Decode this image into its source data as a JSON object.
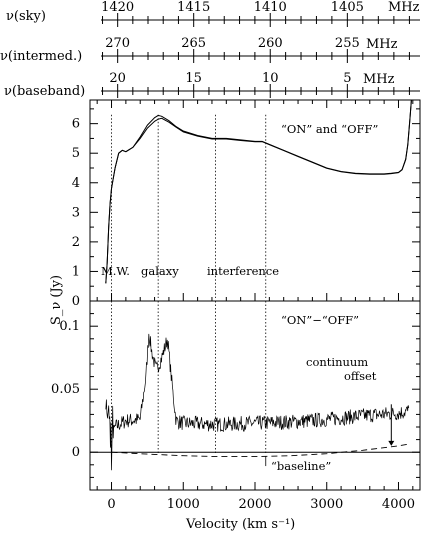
{
  "chart_data": [
    {
      "type": "axis",
      "id": "freq-scales",
      "scales": [
        {
          "label": "ν(sky)",
          "unit": "MHz",
          "ticks": [
            "1420",
            "1415",
            "1410",
            "1405"
          ],
          "tick_values": [
            1420,
            1415,
            1410,
            1405
          ]
        },
        {
          "label": "ν(intermed.)",
          "unit": "MHz",
          "ticks": [
            "270",
            "265",
            "260",
            "255"
          ],
          "tick_values": [
            270,
            265,
            260,
            255
          ]
        },
        {
          "label": "ν(baseband)",
          "unit": "MHz",
          "ticks": [
            "20",
            "15",
            "10",
            "5"
          ],
          "tick_values": [
            20,
            15,
            10,
            5
          ]
        }
      ]
    },
    {
      "type": "line",
      "id": "on-off-spectra",
      "legend": "“ON” and “OFF”",
      "ylabel": "S_ν (Jy)",
      "ylim": [
        0,
        6.8
      ],
      "yticks": [
        0,
        1,
        2,
        3,
        4,
        5,
        6
      ],
      "xlim": [
        -300,
        4300
      ],
      "annotations": [
        "M.W.",
        "galaxy",
        "interference"
      ],
      "marker_velocities": [
        0,
        650,
        1450,
        2150
      ],
      "series": [
        {
          "x": [
            -80,
            -60,
            -40,
            -20,
            0,
            20,
            50,
            100,
            150,
            200,
            300,
            400,
            500,
            600,
            650,
            700,
            800,
            900,
            1000,
            1200,
            1400,
            1500,
            1600,
            1800,
            2000,
            2100,
            2200,
            2400,
            2600,
            2800,
            3000,
            3200,
            3400,
            3600,
            3800,
            3900,
            4000,
            4050,
            4100,
            4130,
            4160,
            4180
          ],
          "y": [
            0.6,
            1.3,
            2.5,
            3.3,
            3.8,
            4.1,
            4.5,
            5.0,
            5.1,
            5.05,
            5.2,
            5.55,
            5.95,
            6.2,
            6.28,
            6.25,
            6.1,
            5.9,
            5.75,
            5.6,
            5.5,
            5.5,
            5.5,
            5.45,
            5.4,
            5.4,
            5.3,
            5.1,
            4.9,
            4.7,
            4.5,
            4.38,
            4.32,
            4.3,
            4.3,
            4.32,
            4.35,
            4.45,
            4.8,
            5.3,
            6.2,
            6.8
          ]
        },
        {
          "x": [
            -80,
            -60,
            -40,
            -20,
            0,
            20,
            50,
            100,
            150,
            200,
            300,
            400,
            500,
            600,
            650,
            700,
            800,
            900,
            1000,
            1200,
            1400,
            1500,
            1600,
            1800,
            2000,
            2100,
            2200,
            2400,
            2600,
            2800,
            3000,
            3200,
            3400,
            3600,
            3800,
            3900,
            4000,
            4050,
            4100,
            4130,
            4160,
            4180
          ],
          "y": [
            0.6,
            1.3,
            2.5,
            3.3,
            3.8,
            4.1,
            4.5,
            5.0,
            5.1,
            5.05,
            5.2,
            5.5,
            5.85,
            6.08,
            6.15,
            6.18,
            6.05,
            5.88,
            5.72,
            5.58,
            5.48,
            5.48,
            5.48,
            5.43,
            5.39,
            5.39,
            5.29,
            5.09,
            4.89,
            4.69,
            4.49,
            4.37,
            4.31,
            4.29,
            4.29,
            4.31,
            4.34,
            4.44,
            4.78,
            5.28,
            6.18,
            6.8
          ]
        }
      ]
    },
    {
      "type": "line",
      "id": "difference-spectrum",
      "legend": "“ON”−“OFF”",
      "xlabel": "Velocity (km s⁻¹)",
      "ylim": [
        -0.03,
        0.12
      ],
      "yticks": [
        "0",
        "0.05",
        "0.1"
      ],
      "ytick_values": [
        0,
        0.05,
        0.1
      ],
      "xlim": [
        -300,
        4300
      ],
      "xticks": [
        "0",
        "1000",
        "2000",
        "3000",
        "4000"
      ],
      "xtick_values": [
        0,
        1000,
        2000,
        3000,
        4000
      ],
      "annotations": [
        "continuum offset",
        "“baseline”"
      ],
      "difference_envelope": {
        "x": [
          -80,
          -30,
          0,
          50,
          200,
          400,
          480,
          520,
          560,
          620,
          700,
          780,
          850,
          900,
          1000,
          1500,
          2000,
          2500,
          3000,
          3500,
          4000,
          4150
        ],
        "y": [
          0.04,
          0.02,
          0.01,
          0.02,
          0.025,
          0.026,
          0.06,
          0.095,
          0.08,
          0.065,
          0.075,
          0.09,
          0.05,
          0.025,
          0.023,
          0.022,
          0.023,
          0.024,
          0.026,
          0.029,
          0.031,
          0.033
        ]
      },
      "baseline": {
        "x": [
          0,
          500,
          1000,
          1500,
          2000,
          2500,
          3000,
          3500,
          4000,
          4150
        ],
        "y": [
          0,
          -0.0015,
          -0.0028,
          -0.0035,
          -0.0035,
          -0.0028,
          -0.0012,
          0.0015,
          0.005,
          0.0065
        ]
      }
    }
  ]
}
